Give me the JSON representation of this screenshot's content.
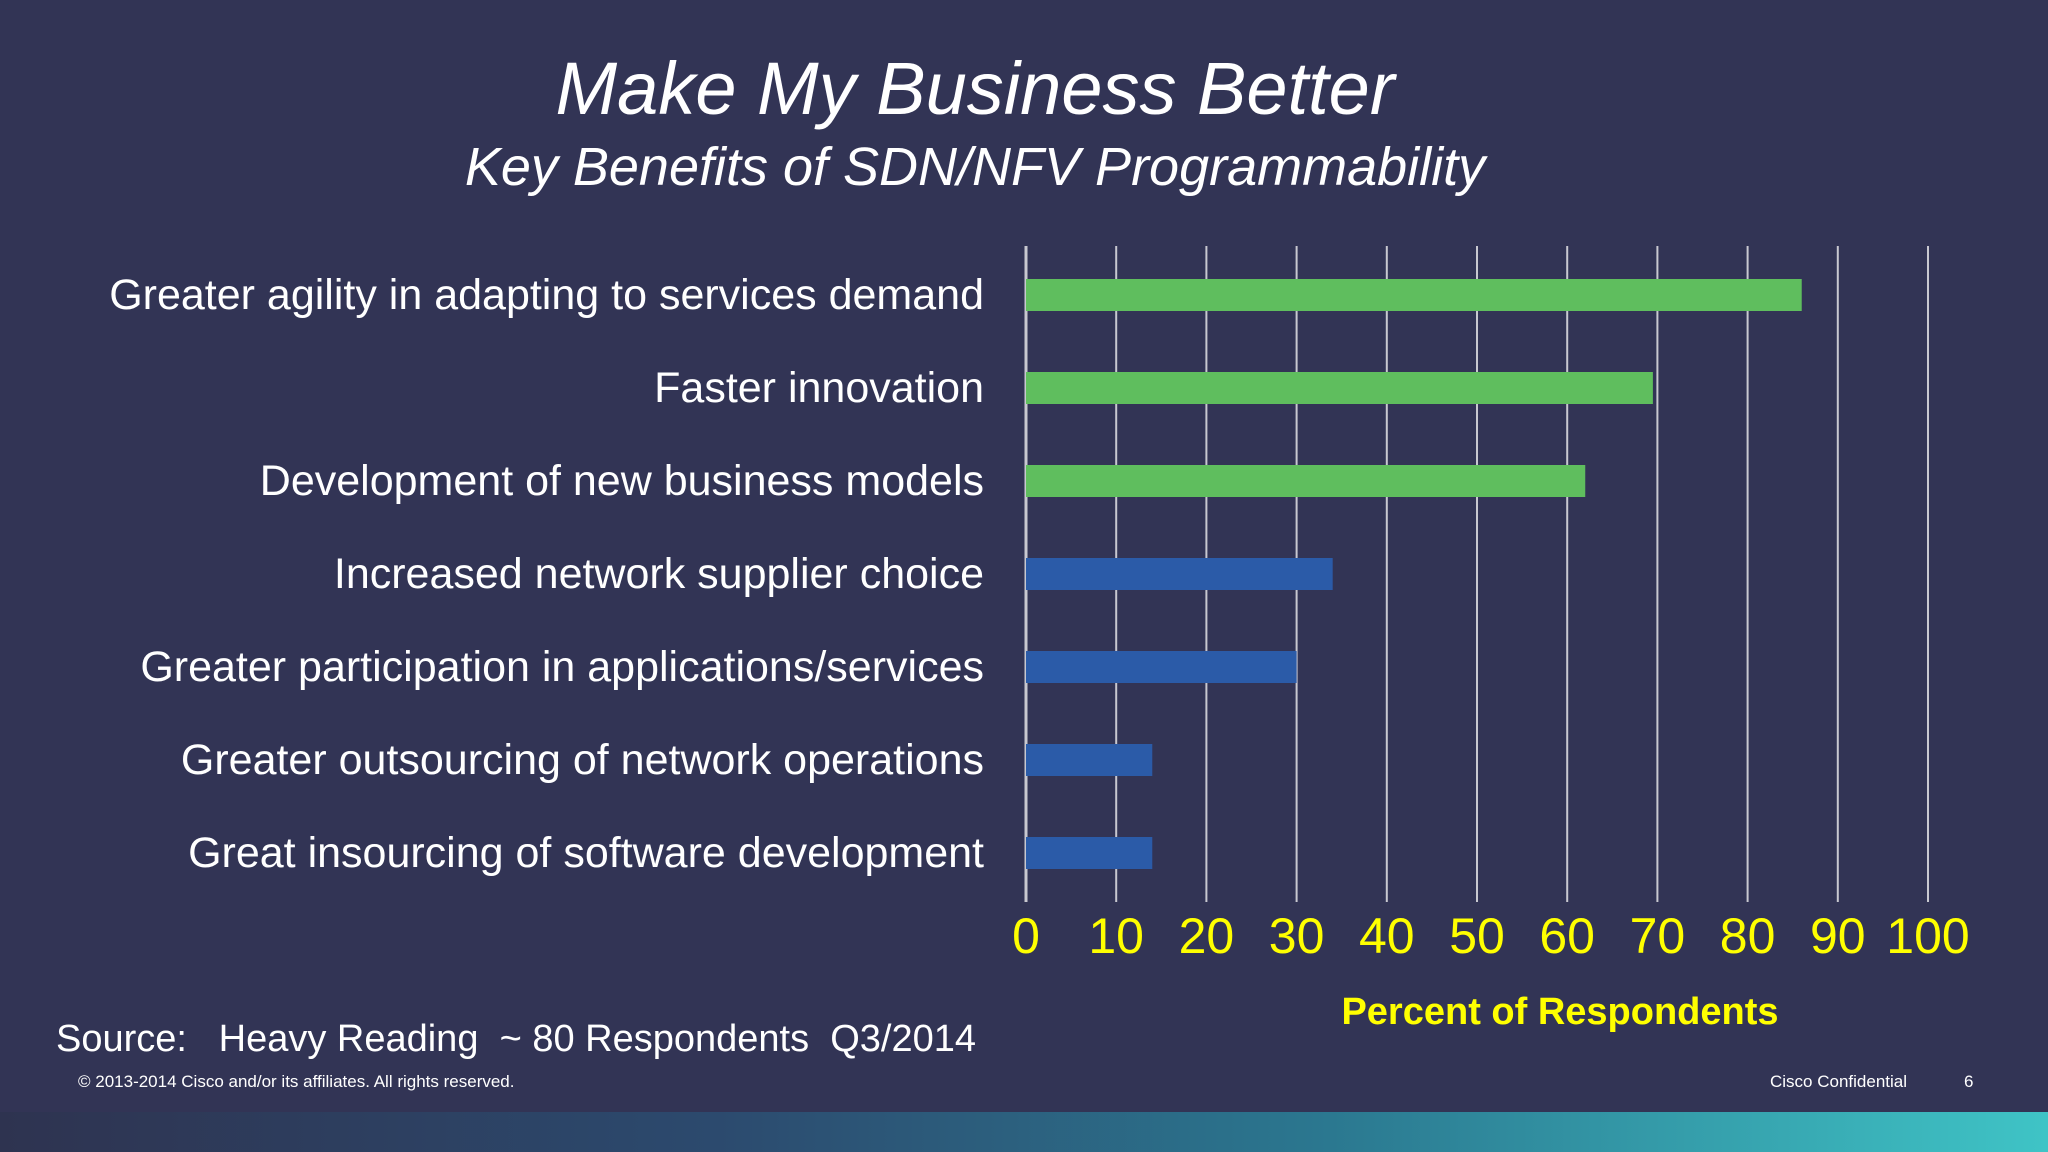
{
  "slide": {
    "title": "Make My Business Better",
    "subtitle": "Key Benefits of SDN/NFV Programmability",
    "source": "Source:   Heavy Reading  ~ 80 Respondents  Q3/2014",
    "copyright": "© 2013-2014  Cisco and/or its affiliates. All rights reserved.",
    "confidential": "Cisco Confidential",
    "page_number": "6"
  },
  "colors": {
    "background": "#323455",
    "bar_green": "#5fbe5e",
    "bar_blue": "#2b5ba8",
    "axis_text": "#ffff00",
    "gridline": "#c8c8d0"
  },
  "chart_data": {
    "type": "bar",
    "orientation": "horizontal",
    "categories": [
      "Greater agility in adapting to services demand",
      "Faster innovation",
      "Development of new business models",
      "Increased network supplier choice",
      "Greater participation in applications/services",
      "Greater outsourcing of network operations",
      "Great insourcing of software development"
    ],
    "values": [
      86,
      69.5,
      62,
      34,
      30,
      14,
      14
    ],
    "bar_colors": [
      "#5fbe5e",
      "#5fbe5e",
      "#5fbe5e",
      "#2b5ba8",
      "#2b5ba8",
      "#2b5ba8",
      "#2b5ba8"
    ],
    "xlabel": "Percent of Respondents",
    "xlim": [
      0,
      100
    ],
    "xticks": [
      0,
      10,
      20,
      30,
      40,
      50,
      60,
      70,
      80,
      90,
      100
    ],
    "grid": "vertical",
    "legend": "none"
  }
}
